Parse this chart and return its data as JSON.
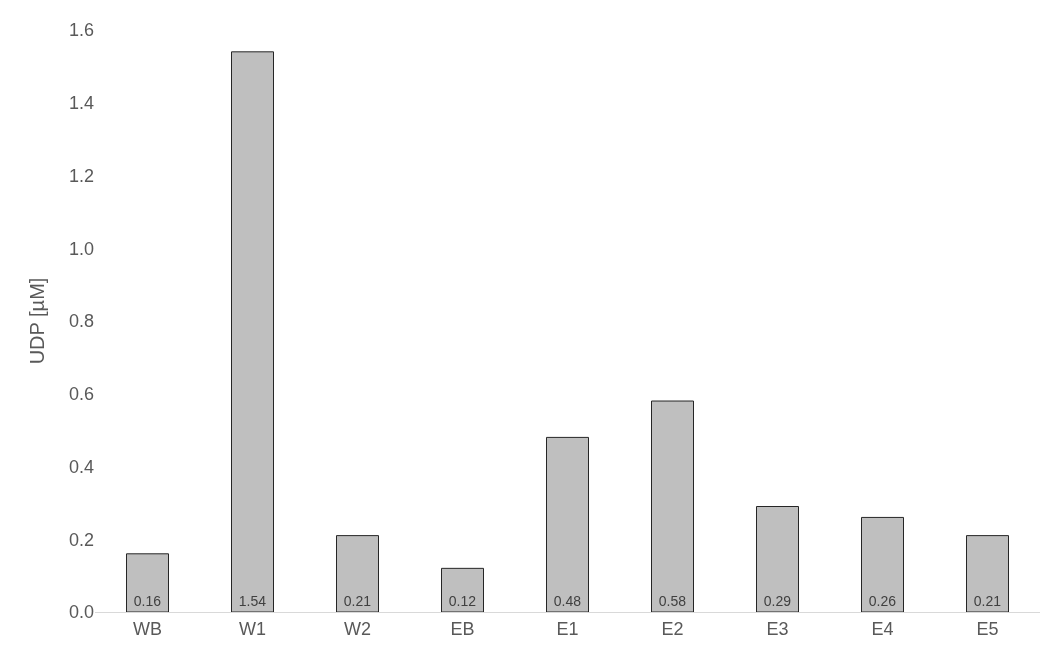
{
  "chart_data": {
    "type": "bar",
    "ylabel": "UDP [µM]",
    "categories": [
      "WB",
      "W1",
      "W2",
      "EB",
      "E1",
      "E2",
      "E3",
      "E4",
      "E5"
    ],
    "values": [
      0.16,
      1.54,
      0.21,
      0.12,
      0.48,
      0.58,
      0.29,
      0.26,
      0.21
    ],
    "color": "#bfbfbf",
    "ylim": [
      0,
      1.6
    ],
    "yticks": [
      {
        "value": 0,
        "label": "0.0"
      },
      {
        "value": 0.2,
        "label": "0.2"
      },
      {
        "value": 0.4,
        "label": "0.4"
      },
      {
        "value": 0.6,
        "label": "0.6"
      },
      {
        "value": 0.8,
        "label": "0.8"
      },
      {
        "value": 1,
        "label": "1.0"
      },
      {
        "value": 1.2,
        "label": "1.2"
      },
      {
        "value": 1.4,
        "label": "1.4"
      },
      {
        "value": 1.6,
        "label": "1.6"
      }
    ],
    "grid": false,
    "legend": false,
    "data_labels": true
  }
}
